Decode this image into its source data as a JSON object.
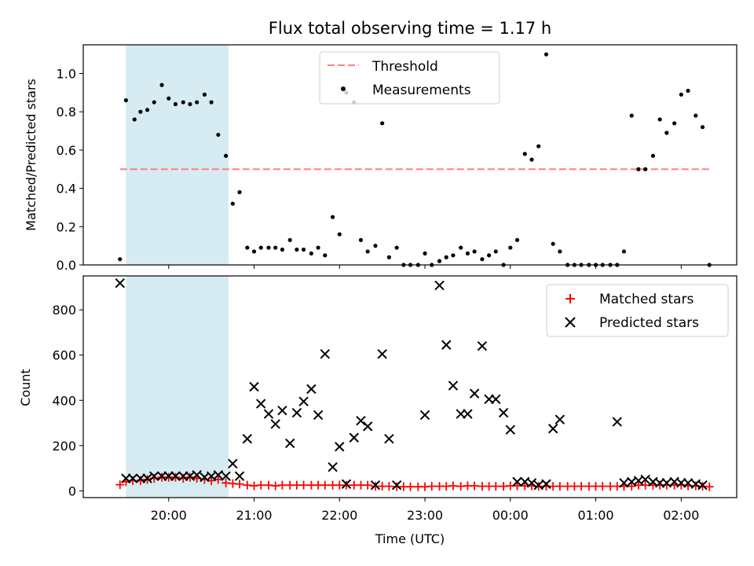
{
  "chart_data": [
    {
      "type": "scatter",
      "title": "Flux total observing time = 1.17 h",
      "xlabel": "",
      "ylabel": "Matched/Predicted stars",
      "ylim": [
        0,
        1.15
      ],
      "yticks": [
        0.0,
        0.2,
        0.4,
        0.6,
        0.8,
        1.0
      ],
      "ytick_labels": [
        "0.0",
        "0.2",
        "0.4",
        "0.6",
        "0.8",
        "1.0"
      ],
      "xlim_hours": [
        19.0,
        26.65
      ],
      "shaded_region_hours": [
        19.5,
        20.7
      ],
      "threshold": {
        "name": "Threshold",
        "y": 0.5,
        "x_hours": [
          19.43,
          26.33
        ],
        "color": "#ff7f7f"
      },
      "legend_position": "upper center",
      "series": [
        {
          "name": "Measurements",
          "marker": "dot",
          "color": "#000000",
          "x_hours": [
            19.43,
            19.5,
            19.6,
            19.67,
            19.75,
            19.83,
            19.92,
            20.0,
            20.08,
            20.17,
            20.25,
            20.33,
            20.42,
            20.5,
            20.58,
            20.67,
            20.75,
            20.83,
            20.92,
            21.0,
            21.08,
            21.17,
            21.25,
            21.33,
            21.42,
            21.5,
            21.58,
            21.67,
            21.75,
            21.83,
            21.92,
            22.0,
            22.08,
            22.17,
            22.25,
            22.33,
            22.42,
            22.5,
            22.58,
            22.67,
            22.75,
            22.83,
            22.92,
            23.0,
            23.08,
            23.17,
            23.25,
            23.33,
            23.42,
            23.5,
            23.58,
            23.67,
            23.75,
            23.83,
            23.92,
            24.0,
            24.08,
            24.17,
            24.25,
            24.33,
            24.42,
            24.5,
            24.58,
            24.67,
            24.75,
            24.83,
            24.92,
            25.0,
            25.08,
            25.17,
            25.25,
            25.33,
            25.42,
            25.5,
            25.58,
            25.67,
            25.75,
            25.83,
            25.92,
            26.0,
            26.08,
            26.17,
            26.25,
            26.33
          ],
          "values": [
            0.03,
            0.86,
            0.76,
            0.8,
            0.81,
            0.85,
            0.94,
            0.87,
            0.84,
            0.85,
            0.84,
            0.85,
            0.89,
            0.85,
            0.68,
            0.57,
            0.32,
            0.38,
            0.09,
            0.07,
            0.09,
            0.09,
            0.09,
            0.08,
            0.13,
            0.08,
            0.08,
            0.06,
            0.09,
            0.05,
            0.25,
            0.16,
            0.9,
            0.85,
            0.13,
            0.07,
            0.1,
            0.74,
            0.04,
            0.09,
            0.0,
            0.0,
            0.0,
            0.06,
            0.0,
            0.02,
            0.04,
            0.05,
            0.09,
            0.06,
            0.07,
            0.03,
            0.05,
            0.07,
            0.0,
            0.09,
            0.13,
            0.58,
            0.55,
            0.62,
            1.1,
            0.11,
            0.07,
            0.0,
            0.0,
            0.0,
            0.0,
            0.0,
            0.0,
            0.0,
            0.0,
            0.07,
            0.78,
            0.5,
            0.5,
            0.57,
            0.76,
            0.69,
            0.74,
            0.89,
            0.91,
            0.78,
            0.72,
            0.0
          ]
        }
      ]
    },
    {
      "type": "scatter",
      "title": "",
      "xlabel": "Time (UTC)",
      "ylabel": "Count",
      "ylim": [
        -30,
        950
      ],
      "yticks": [
        0,
        200,
        400,
        600,
        800
      ],
      "ytick_labels": [
        "0",
        "200",
        "400",
        "600",
        "800"
      ],
      "xlim_hours": [
        19.0,
        26.65
      ],
      "xticks_hours": [
        20,
        21,
        22,
        23,
        24,
        25,
        26
      ],
      "xtick_labels": [
        "20:00",
        "21:00",
        "22:00",
        "23:00",
        "00:00",
        "01:00",
        "02:00"
      ],
      "shaded_region_hours": [
        19.5,
        20.7
      ],
      "legend_position": "upper right",
      "series": [
        {
          "name": "Matched stars",
          "marker": "plus",
          "color": "#ff0000",
          "x_hours": [
            19.43,
            19.5,
            19.58,
            19.67,
            19.75,
            19.83,
            19.92,
            20.0,
            20.08,
            20.17,
            20.25,
            20.33,
            20.42,
            20.5,
            20.58,
            20.67,
            20.75,
            20.83,
            20.92,
            21.0,
            21.08,
            21.17,
            21.25,
            21.33,
            21.42,
            21.5,
            21.58,
            21.67,
            21.75,
            21.83,
            21.92,
            22.0,
            22.08,
            22.17,
            22.25,
            22.33,
            22.42,
            22.5,
            22.58,
            22.67,
            22.75,
            22.83,
            22.92,
            23.0,
            23.08,
            23.17,
            23.25,
            23.33,
            23.42,
            23.5,
            23.58,
            23.67,
            23.75,
            23.83,
            23.92,
            24.0,
            24.08,
            24.17,
            24.25,
            24.33,
            24.42,
            24.5,
            24.58,
            24.67,
            24.75,
            24.83,
            24.92,
            25.0,
            25.08,
            25.17,
            25.25,
            25.33,
            25.42,
            25.5,
            25.58,
            25.67,
            25.75,
            25.83,
            25.92,
            26.0,
            26.08,
            26.17,
            26.25,
            26.33
          ],
          "values": [
            27,
            40,
            45,
            45,
            50,
            55,
            60,
            60,
            60,
            55,
            60,
            55,
            50,
            45,
            50,
            35,
            32,
            30,
            25,
            22,
            25,
            25,
            22,
            25,
            25,
            25,
            25,
            25,
            25,
            25,
            25,
            25,
            25,
            25,
            25,
            25,
            20,
            20,
            20,
            18,
            18,
            18,
            18,
            18,
            20,
            20,
            20,
            22,
            20,
            22,
            22,
            20,
            20,
            20,
            20,
            22,
            22,
            22,
            22,
            20,
            20,
            20,
            20,
            20,
            20,
            20,
            20,
            20,
            20,
            20,
            20,
            20,
            20,
            25,
            25,
            25,
            25,
            25,
            25,
            25,
            22,
            22,
            20,
            18
          ]
        },
        {
          "name": "Predicted stars",
          "marker": "x",
          "color": "#000000",
          "x_hours": [
            19.43,
            19.5,
            19.58,
            19.67,
            19.75,
            19.83,
            19.92,
            20.0,
            20.08,
            20.17,
            20.25,
            20.33,
            20.42,
            20.5,
            20.58,
            20.67,
            20.75,
            20.83,
            20.92,
            21.0,
            21.08,
            21.17,
            21.25,
            21.33,
            21.42,
            21.5,
            21.58,
            21.67,
            21.75,
            21.83,
            21.92,
            22.0,
            22.08,
            22.17,
            22.25,
            22.33,
            22.42,
            22.5,
            22.58,
            22.67,
            23.0,
            23.17,
            23.25,
            23.33,
            23.42,
            23.5,
            23.58,
            23.67,
            23.75,
            23.83,
            23.92,
            24.0,
            24.08,
            24.17,
            24.25,
            24.33,
            24.42,
            24.5,
            24.58,
            25.25,
            25.33,
            25.42,
            25.5,
            25.58,
            25.67,
            25.75,
            25.83,
            25.92,
            26.0,
            26.08,
            26.17,
            26.25
          ],
          "values": [
            918,
            55,
            55,
            55,
            55,
            65,
            65,
            65,
            65,
            65,
            65,
            70,
            60,
            65,
            70,
            65,
            120,
            65,
            230,
            460,
            385,
            340,
            295,
            355,
            210,
            345,
            395,
            450,
            335,
            605,
            105,
            195,
            30,
            235,
            310,
            285,
            25,
            605,
            230,
            25,
            335,
            908,
            645,
            465,
            340,
            340,
            430,
            640,
            405,
            405,
            345,
            270,
            40,
            40,
            35,
            25,
            30,
            275,
            315,
            305,
            35,
            40,
            45,
            50,
            40,
            35,
            35,
            40,
            35,
            35,
            30,
            25
          ]
        }
      ]
    }
  ]
}
